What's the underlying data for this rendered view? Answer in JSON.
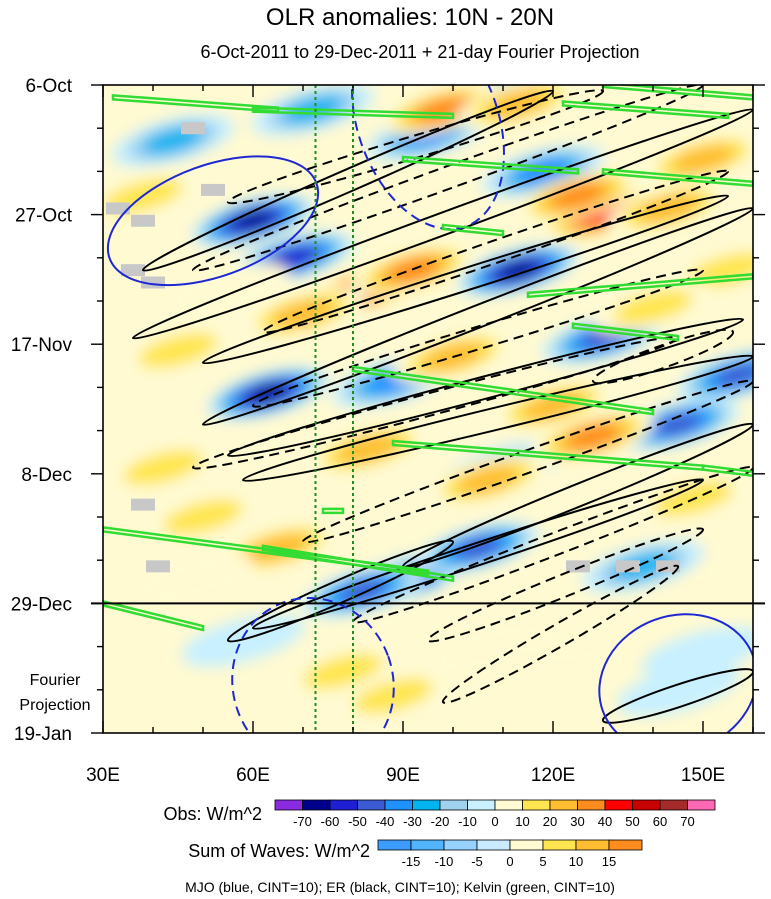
{
  "chart_data": {
    "type": "heatmap",
    "title": "OLR anomalies: 10N - 20N",
    "subtitle": "6-Oct-2011 to 29-Dec-2011 + 21-day Fourier Projection",
    "x_axis": {
      "range": [
        30,
        160
      ],
      "ticks": [
        30,
        60,
        90,
        120,
        150
      ],
      "tick_labels": [
        "30E",
        "60E",
        "90E",
        "120E",
        "150E"
      ]
    },
    "y_axis": {
      "range_days": [
        0,
        105
      ],
      "ticks_days": [
        0,
        21,
        42,
        63,
        84,
        105
      ],
      "tick_labels": [
        "6-Oct",
        "27-Oct",
        "17-Nov",
        "8-Dec",
        "29-Dec",
        "19-Jan"
      ],
      "reversed": true
    },
    "projection_label": [
      "Fourier",
      "Projection"
    ],
    "projection_start_day": 84,
    "reference_lines_lon": [
      72.5,
      80
    ],
    "obs_colorbar": {
      "label": "Obs: W/m^2",
      "levels": [
        -70,
        -60,
        -50,
        -40,
        -30,
        -20,
        -10,
        0,
        10,
        20,
        30,
        40,
        50,
        60,
        70
      ],
      "colors": [
        "#8a2be2",
        "#00008b",
        "#1e1ed2",
        "#3c5ad2",
        "#1e90ff",
        "#00b4f0",
        "#a0d2f0",
        "#c8f0ff",
        "#fffad2",
        "#ffe650",
        "#ffbe32",
        "#ff8c1e",
        "#ff0000",
        "#c80000",
        "#a52a2a",
        "#ff69b4"
      ]
    },
    "waves_colorbar": {
      "label": "Sum of Waves: W/m^2",
      "levels": [
        -15,
        -10,
        -5,
        0,
        5,
        10,
        15
      ],
      "colors": [
        "#3c9bff",
        "#50b4ff",
        "#96d2ff",
        "#c8ebff",
        "#fffad2",
        "#ffe650",
        "#ffbe32",
        "#ff8c1e"
      ]
    },
    "contour_note": "MJO (blue, CINT=10); ER (black, CINT=10); Kelvin (green, CINT=10)",
    "anomaly_blobs": [
      {
        "lon": 60,
        "day": 22,
        "value": -70
      },
      {
        "lon": 68,
        "day": 28,
        "value": -55
      },
      {
        "lon": 108,
        "day": 3,
        "value": -55
      },
      {
        "lon": 113,
        "day": 30,
        "value": -65
      },
      {
        "lon": 63,
        "day": 50,
        "value": -70
      },
      {
        "lon": 88,
        "day": 48,
        "value": -40
      },
      {
        "lon": 90,
        "day": 80,
        "value": -70
      },
      {
        "lon": 82,
        "day": 82,
        "value": -50
      },
      {
        "lon": 145,
        "day": 55,
        "value": -45
      },
      {
        "lon": 157,
        "day": 47,
        "value": -50
      },
      {
        "lon": 105,
        "day": 75,
        "value": -45
      },
      {
        "lon": 130,
        "day": 41,
        "value": -45
      },
      {
        "lon": 95,
        "day": 8,
        "value": -35
      },
      {
        "lon": 118,
        "day": 14,
        "value": -35
      },
      {
        "lon": 44,
        "day": 9,
        "value": -25
      },
      {
        "lon": 72,
        "day": 4,
        "value": -25
      },
      {
        "lon": 110,
        "day": 62,
        "value": -30
      },
      {
        "lon": 138,
        "day": 78,
        "value": -30
      },
      {
        "lon": 150,
        "day": 92,
        "value": -12
      },
      {
        "lon": 145,
        "day": 98,
        "value": -10
      },
      {
        "lon": 58,
        "day": 90,
        "value": -8
      },
      {
        "lon": 83,
        "day": 33,
        "value": 55
      },
      {
        "lon": 92,
        "day": 30,
        "value": 35
      },
      {
        "lon": 130,
        "day": 21,
        "value": 45
      },
      {
        "lon": 125,
        "day": 18,
        "value": 38
      },
      {
        "lon": 98,
        "day": 4,
        "value": 42
      },
      {
        "lon": 113,
        "day": 3,
        "value": 28
      },
      {
        "lon": 143,
        "day": 20,
        "value": 30
      },
      {
        "lon": 150,
        "day": 12,
        "value": 30
      },
      {
        "lon": 70,
        "day": 37,
        "value": 28
      },
      {
        "lon": 100,
        "day": 44,
        "value": 32
      },
      {
        "lon": 128,
        "day": 57,
        "value": 35
      },
      {
        "lon": 120,
        "day": 52,
        "value": 25
      },
      {
        "lon": 83,
        "day": 59,
        "value": 28
      },
      {
        "lon": 107,
        "day": 64,
        "value": 30
      },
      {
        "lon": 148,
        "day": 67,
        "value": 22
      },
      {
        "lon": 65,
        "day": 75,
        "value": 25
      },
      {
        "lon": 50,
        "day": 70,
        "value": 18
      },
      {
        "lon": 42,
        "day": 62,
        "value": 15
      },
      {
        "lon": 78,
        "day": 95,
        "value": 15
      },
      {
        "lon": 88,
        "day": 99,
        "value": 18
      },
      {
        "lon": 108,
        "day": 91,
        "value": 10
      },
      {
        "lon": 128,
        "day": 90,
        "value": 10
      },
      {
        "lon": 45,
        "day": 43,
        "value": 15
      },
      {
        "lon": 55,
        "day": 33,
        "value": 12
      },
      {
        "lon": 155,
        "day": 30,
        "value": 18
      },
      {
        "lon": 140,
        "day": 36,
        "value": 15
      },
      {
        "lon": 38,
        "day": 18,
        "value": 15
      },
      {
        "lon": 48,
        "day": 80,
        "value": 12
      }
    ],
    "missing_data_cells": [
      {
        "lon": 48,
        "day": 7
      },
      {
        "lon": 52,
        "day": 17
      },
      {
        "lon": 33,
        "day": 20
      },
      {
        "lon": 38,
        "day": 22
      },
      {
        "lon": 36,
        "day": 30
      },
      {
        "lon": 40,
        "day": 32
      },
      {
        "lon": 38,
        "day": 68
      },
      {
        "lon": 41,
        "day": 78
      },
      {
        "lon": 125,
        "day": 78
      },
      {
        "lon": 135,
        "day": 78
      },
      {
        "lon": 143,
        "day": 78
      }
    ],
    "er_contours_dashed": [
      {
        "lon_start": 48,
        "day_start": 30,
        "lon_end": 150,
        "day_end": 0
      },
      {
        "lon_start": 55,
        "day_start": 19,
        "lon_end": 130,
        "day_end": 1
      },
      {
        "lon_start": 62,
        "day_start": 40,
        "lon_end": 155,
        "day_end": 14
      },
      {
        "lon_start": 60,
        "day_start": 52,
        "lon_end": 150,
        "day_end": 30
      },
      {
        "lon_start": 48,
        "day_start": 62,
        "lon_end": 145,
        "day_end": 41
      },
      {
        "lon_start": 70,
        "day_start": 74,
        "lon_end": 160,
        "day_end": 48
      },
      {
        "lon_start": 80,
        "day_start": 87,
        "lon_end": 160,
        "day_end": 62
      },
      {
        "lon_start": 95,
        "day_start": 90,
        "lon_end": 150,
        "day_end": 72
      },
      {
        "lon_start": 98,
        "day_start": 100,
        "lon_end": 145,
        "day_end": 78
      },
      {
        "lon_start": 128,
        "day_start": 48,
        "lon_end": 156,
        "day_end": 40
      }
    ],
    "er_contours_solid": [
      {
        "lon_start": 38,
        "day_start": 30,
        "lon_end": 120,
        "day_end": 1
      },
      {
        "lon_start": 36,
        "day_start": 41,
        "lon_end": 160,
        "day_end": 4
      },
      {
        "lon_start": 50,
        "day_start": 45,
        "lon_end": 155,
        "day_end": 18
      },
      {
        "lon_start": 50,
        "day_start": 55,
        "lon_end": 160,
        "day_end": 20
      },
      {
        "lon_start": 55,
        "day_start": 60,
        "lon_end": 158,
        "day_end": 38
      },
      {
        "lon_start": 58,
        "day_start": 64,
        "lon_end": 160,
        "day_end": 44
      },
      {
        "lon_start": 90,
        "day_start": 78,
        "lon_end": 160,
        "day_end": 55
      },
      {
        "lon_start": 55,
        "day_start": 90,
        "lon_end": 100,
        "day_end": 74
      },
      {
        "lon_start": 60,
        "day_start": 88,
        "lon_end": 150,
        "day_end": 64
      },
      {
        "lon_start": 130,
        "day_start": 103,
        "lon_end": 160,
        "day_end": 95
      }
    ],
    "mjo_contours": [
      {
        "lon": 52,
        "day": 22,
        "rx": 22,
        "ry": 9,
        "style": "solid"
      },
      {
        "lon": 95,
        "day": 6,
        "rx": 14,
        "ry": 18,
        "style": "dashed"
      },
      {
        "lon": 72,
        "day": 97,
        "rx": 16,
        "ry": 14,
        "style": "dashed"
      },
      {
        "lon": 145,
        "day": 97,
        "rx": 16,
        "ry": 11,
        "style": "solid"
      }
    ],
    "kelvin_contours": [
      {
        "lon_start": 32,
        "day_start": 2,
        "lon_end": 65,
        "day_end": 4
      },
      {
        "lon_start": 60,
        "day_start": 4,
        "lon_end": 100,
        "day_end": 5
      },
      {
        "lon_start": 130,
        "day_start": 0,
        "lon_end": 160,
        "day_end": 2
      },
      {
        "lon_start": 122,
        "day_start": 3,
        "lon_end": 155,
        "day_end": 5
      },
      {
        "lon_start": 90,
        "day_start": 12,
        "lon_end": 125,
        "day_end": 14
      },
      {
        "lon_start": 130,
        "day_start": 14,
        "lon_end": 160,
        "day_end": 16
      },
      {
        "lon_start": 98,
        "day_start": 23,
        "lon_end": 110,
        "day_end": 24
      },
      {
        "lon_start": 115,
        "day_start": 34,
        "lon_end": 160,
        "day_end": 31
      },
      {
        "lon_start": 124,
        "day_start": 39,
        "lon_end": 145,
        "day_end": 41
      },
      {
        "lon_start": 80,
        "day_start": 46,
        "lon_end": 140,
        "day_end": 53
      },
      {
        "lon_start": 88,
        "day_start": 58,
        "lon_end": 150,
        "day_end": 62
      },
      {
        "lon_start": 150,
        "day_start": 62,
        "lon_end": 160,
        "day_end": 63
      },
      {
        "lon_start": 30,
        "day_start": 72,
        "lon_end": 95,
        "day_end": 79
      },
      {
        "lon_start": 62,
        "day_start": 75,
        "lon_end": 100,
        "day_end": 80
      },
      {
        "lon_start": 30,
        "day_start": 84,
        "lon_end": 50,
        "day_end": 88
      },
      {
        "lon_start": 74,
        "day_start": 69,
        "lon_end": 78,
        "day_end": 69
      }
    ]
  }
}
